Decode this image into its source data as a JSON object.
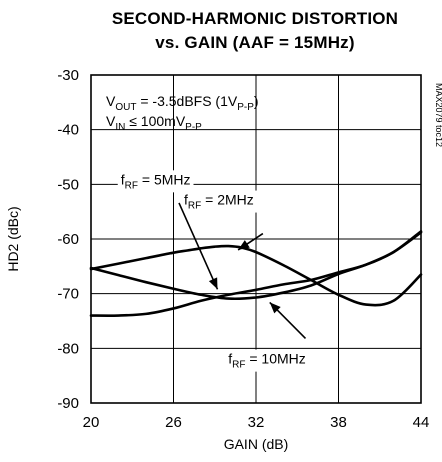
{
  "chart_data": {
    "type": "line",
    "title_line1": "SECOND-HARMONIC DISTORTION",
    "title_line2": "vs. GAIN (AAF = 15MHz)",
    "xlabel": "GAIN (dB)",
    "ylabel": "HD2 (dBc)",
    "xlim": [
      20,
      44
    ],
    "ylim": [
      -90,
      -30
    ],
    "xticks": [
      20,
      26,
      32,
      38,
      44
    ],
    "yticks": [
      -30,
      -40,
      -50,
      -60,
      -70,
      -80,
      -90
    ],
    "xtick_labels": [
      "20",
      "26",
      "32",
      "38",
      "44"
    ],
    "ytick_labels": [
      "-30",
      "-40",
      "-50",
      "-60",
      "-70",
      "-80",
      "-90"
    ],
    "grid": true,
    "legend": "none",
    "side_label": "MAX2079 toc12",
    "conditions": [
      {
        "pre": "V",
        "sub": "OUT",
        "post": " = -3.5dBFS (1V",
        "sub2": "P-P",
        "post2": ")"
      },
      {
        "pre": "V",
        "sub": "IN",
        "post": " ≤ 100mV",
        "sub2": "P-P",
        "post2": ""
      }
    ],
    "series": [
      {
        "name": "fRF = 2MHz",
        "label_main": "f",
        "label_sub": "RF",
        "label_rest": " = 2MHz",
        "x": [
          20,
          22,
          24,
          26,
          27,
          28,
          29,
          30,
          31,
          32,
          34,
          36,
          38,
          40,
          42,
          44
        ],
        "y": [
          -65.5,
          -64.5,
          -63.5,
          -62.5,
          -62.1,
          -61.7,
          -61.4,
          -61.3,
          -61.6,
          -62.4,
          -64.8,
          -67.5,
          -70.2,
          -72,
          -71.3,
          -66.5
        ]
      },
      {
        "name": "fRF = 5MHz",
        "label_main": "f",
        "label_sub": "RF",
        "label_rest": " = 5MHz",
        "x": [
          20,
          22,
          24,
          26,
          28,
          30,
          32,
          34,
          36,
          38,
          40,
          42,
          44
        ],
        "y": [
          -65.3,
          -66.6,
          -67.9,
          -69.1,
          -70.2,
          -70.9,
          -70.7,
          -69.8,
          -68.5,
          -66.4,
          -64.7,
          -62.4,
          -58.8
        ]
      },
      {
        "name": "fRF = 10MHz",
        "label_main": "f",
        "label_sub": "RF",
        "label_rest": " = 10MHz",
        "x": [
          20,
          22,
          24,
          26,
          28,
          30,
          32,
          34,
          36,
          38,
          40,
          42,
          44
        ],
        "y": [
          -74,
          -74,
          -73.7,
          -72.7,
          -71.3,
          -70.2,
          -69.3,
          -68.3,
          -67.5,
          -66.1,
          -64.7,
          -62.4,
          -58.6
        ]
      }
    ]
  }
}
